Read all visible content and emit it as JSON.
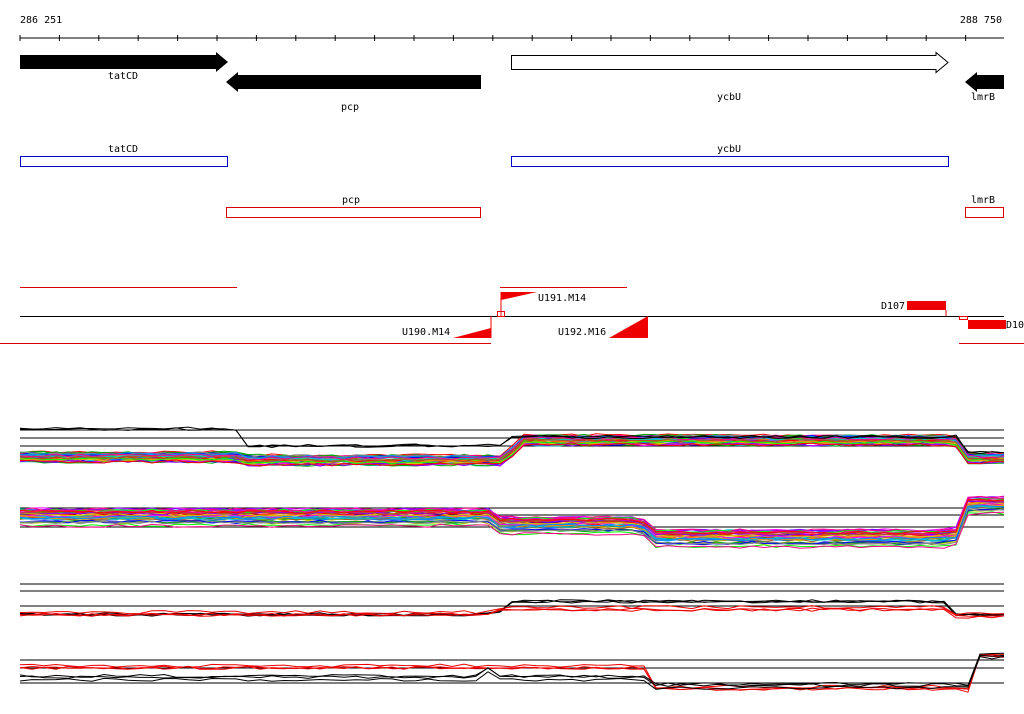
{
  "ruler": {
    "start": "286 251",
    "end": "288 750"
  },
  "genes": [
    {
      "label": "tatCD"
    },
    {
      "label": "pcp"
    },
    {
      "label": "ycbU"
    },
    {
      "label": "lmrB"
    }
  ],
  "transcripts": [
    {
      "label": "tatCD"
    },
    {
      "label": "ycbU"
    },
    {
      "label": "pcp"
    },
    {
      "label": "lmrB"
    }
  ],
  "features": [
    {
      "label": "U191.M14"
    },
    {
      "label": "D107"
    },
    {
      "label": "D10"
    },
    {
      "label": "U190.M14"
    },
    {
      "label": "U192.M16"
    }
  ]
}
